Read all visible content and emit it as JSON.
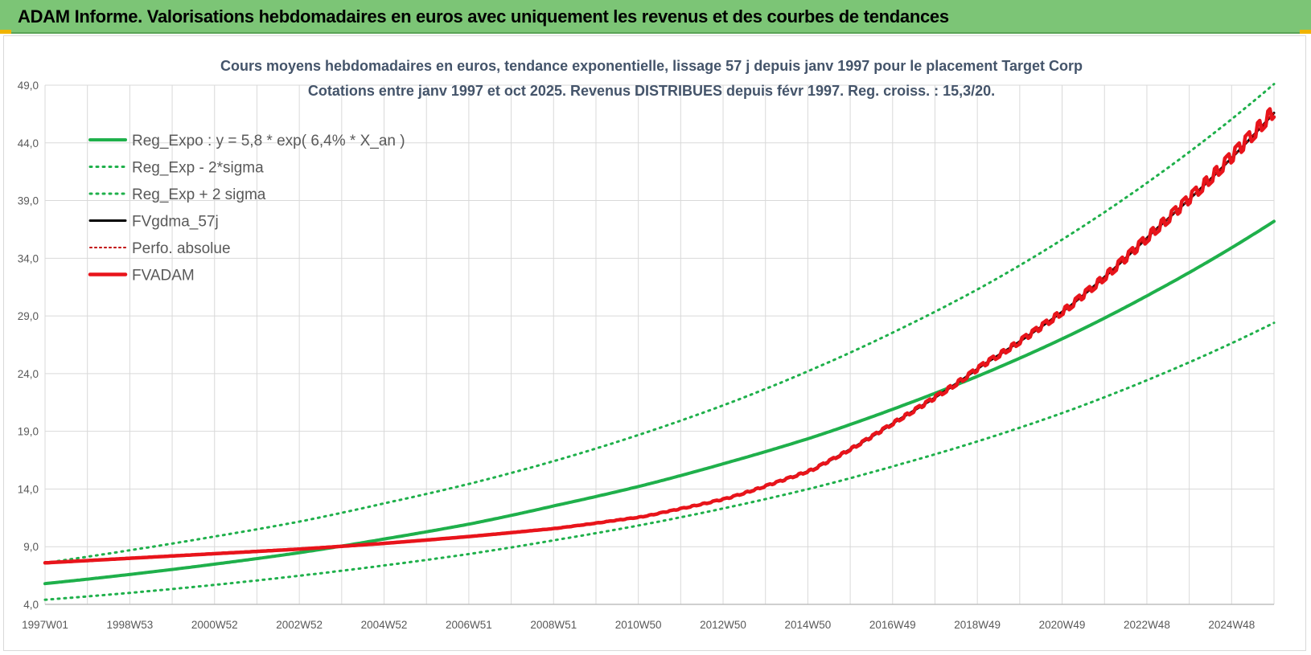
{
  "header": {
    "title": "ADAM Informe. Valorisations hebdomadaires en euros avec uniquement les revenus et des courbes de tendances"
  },
  "colors": {
    "banner": "#7cc576",
    "reg_expo": "#1fb04b",
    "fvgdma": "#000000",
    "perfo": "#c00000",
    "fvadam": "#e8141b",
    "grid": "#d9d9d9",
    "axis_text": "#595959",
    "title_text": "#44546a"
  },
  "chart_data": {
    "type": "line",
    "title": "Cours moyens hebdomadaires en euros, tendance exponentielle, lissage 57 j depuis janv 1997 pour le placement Target Corp",
    "subtitle": "Cotations entre janv 1997 et oct 2025. Revenus DISTRIBUES depuis févr 1997. Reg. croiss. : 15,3/20.",
    "x_tick_labels": [
      "1997W01",
      "1998W53",
      "2000W52",
      "2002W52",
      "2004W52",
      "2006W51",
      "2008W51",
      "2010W50",
      "2012W50",
      "2014W50",
      "2016W49",
      "2018W49",
      "2020W49",
      "2022W48",
      "2024W48"
    ],
    "y_tick_labels": [
      "4,0",
      "9,0",
      "14,0",
      "19,0",
      "24,0",
      "29,0",
      "34,0",
      "39,0",
      "44,0",
      "49,0"
    ],
    "ylim": [
      4,
      49
    ],
    "x_range": [
      "1997W01",
      "2025W43"
    ],
    "grid": true,
    "legend_position": "top-left",
    "x": [
      1997,
      1999,
      2001,
      2003,
      2005,
      2007,
      2009,
      2011,
      2013,
      2015,
      2017,
      2019,
      2021,
      2023,
      2025.8
    ],
    "series": [
      {
        "name": "Reg_Expo : y = 5,8 * exp( 6,4% *  X_an )",
        "key": "reg_expo",
        "style": "solid",
        "values": [
          5.8,
          6.6,
          7.5,
          8.5,
          9.7,
          11.0,
          12.6,
          14.3,
          16.3,
          18.5,
          21.1,
          24.0,
          27.3,
          31.1,
          37.2
        ]
      },
      {
        "name": "Reg_Exp - 2*sigma",
        "key": "reg_minus",
        "style": "dotted",
        "values": [
          4.4,
          5.0,
          5.7,
          6.5,
          7.4,
          8.4,
          9.6,
          10.9,
          12.4,
          14.1,
          16.1,
          18.3,
          20.8,
          23.7,
          28.4
        ]
      },
      {
        "name": "Reg_Exp + 2 sigma",
        "key": "reg_plus",
        "style": "dotted",
        "values": [
          7.6,
          8.7,
          9.9,
          11.2,
          12.8,
          14.5,
          16.5,
          18.8,
          21.4,
          24.4,
          27.8,
          31.6,
          36.0,
          41.0,
          49.1
        ]
      },
      {
        "name": "FVgdma_57j",
        "key": "fvgdma",
        "style": "solid",
        "values": [
          7.6,
          8.0,
          8.4,
          8.8,
          9.3,
          9.9,
          10.6,
          11.6,
          13.2,
          15.7,
          20.0,
          24.8,
          29.8,
          36.4,
          46.6
        ]
      },
      {
        "name": "Perfo. absolue",
        "key": "perfo",
        "style": "dotted",
        "values": [
          7.6,
          8.0,
          8.4,
          8.8,
          9.3,
          9.9,
          10.6,
          11.6,
          13.2,
          15.7,
          20.0,
          24.8,
          29.8,
          36.4,
          46.6
        ]
      },
      {
        "name": "FVADAM",
        "key": "fvadam",
        "style": "solid",
        "values": [
          7.6,
          8.0,
          8.4,
          8.8,
          9.3,
          9.9,
          10.6,
          11.6,
          13.2,
          15.7,
          20.0,
          24.8,
          29.8,
          36.4,
          46.8
        ]
      }
    ]
  }
}
